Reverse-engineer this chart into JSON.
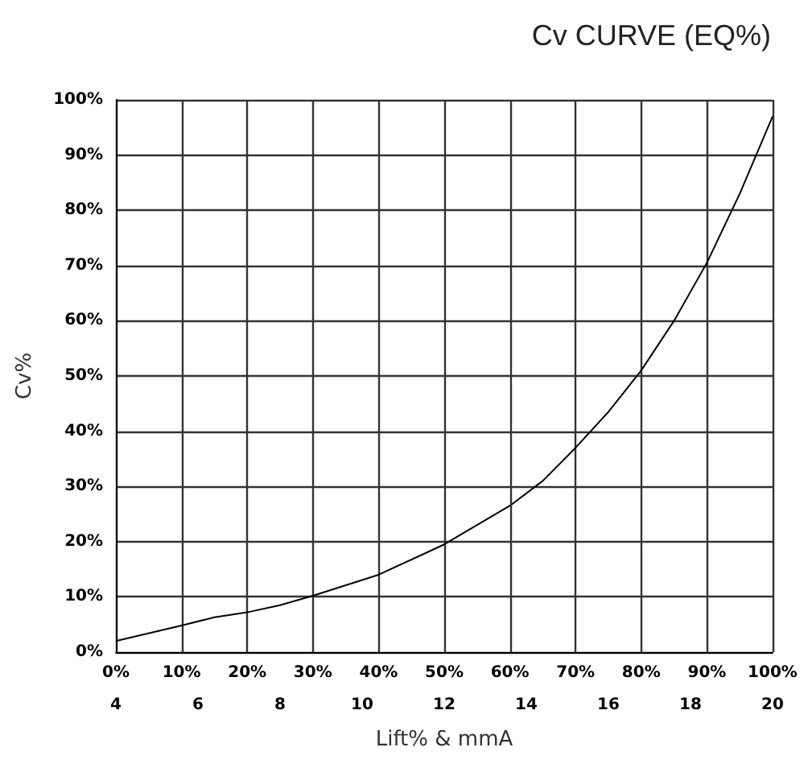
{
  "chart_data": {
    "type": "line",
    "title": "Cv CURVE (EQ%)",
    "xlabel": "Lift% & mmA",
    "ylabel": "Cv%",
    "x": [
      0,
      10,
      15,
      20,
      25,
      30,
      40,
      50,
      60,
      65,
      70,
      75,
      80,
      85,
      90,
      95,
      100
    ],
    "series": [
      {
        "color": "#000000",
        "values": [
          2,
          4.8,
          6.3,
          7.2,
          8.5,
          10.2,
          14,
          19.5,
          26.5,
          31,
          37,
          43.5,
          51,
          60,
          70.5,
          83,
          97
        ]
      }
    ],
    "xlim": [
      0,
      100
    ],
    "xticks": [
      {
        "value": 0,
        "label": "0%"
      },
      {
        "value": 10,
        "label": "10%"
      },
      {
        "value": 20,
        "label": "20%"
      },
      {
        "value": 30,
        "label": "30%"
      },
      {
        "value": 40,
        "label": "40%"
      },
      {
        "value": 50,
        "label": "50%"
      },
      {
        "value": 60,
        "label": "60%"
      },
      {
        "value": 70,
        "label": "70%"
      },
      {
        "value": 80,
        "label": "80%"
      },
      {
        "value": 90,
        "label": "90%"
      },
      {
        "value": 100,
        "label": "100%"
      }
    ],
    "x2lim": [
      4,
      20
    ],
    "x2ticks": [
      4,
      6,
      8,
      10,
      12,
      14,
      16,
      18,
      20
    ],
    "ylim": [
      0,
      100
    ],
    "yticks": [
      {
        "value": 0,
        "label": "0%"
      },
      {
        "value": 10,
        "label": "10%"
      },
      {
        "value": 20,
        "label": "20%"
      },
      {
        "value": 30,
        "label": "30%"
      },
      {
        "value": 40,
        "label": "40%"
      },
      {
        "value": 50,
        "label": "50%"
      },
      {
        "value": 60,
        "label": "60%"
      },
      {
        "value": 70,
        "label": "70%"
      },
      {
        "value": 80,
        "label": "80%"
      },
      {
        "value": 90,
        "label": "90%"
      },
      {
        "value": 100,
        "label": "100%"
      }
    ],
    "grid": true,
    "marker": "none",
    "line_style": "solid"
  }
}
